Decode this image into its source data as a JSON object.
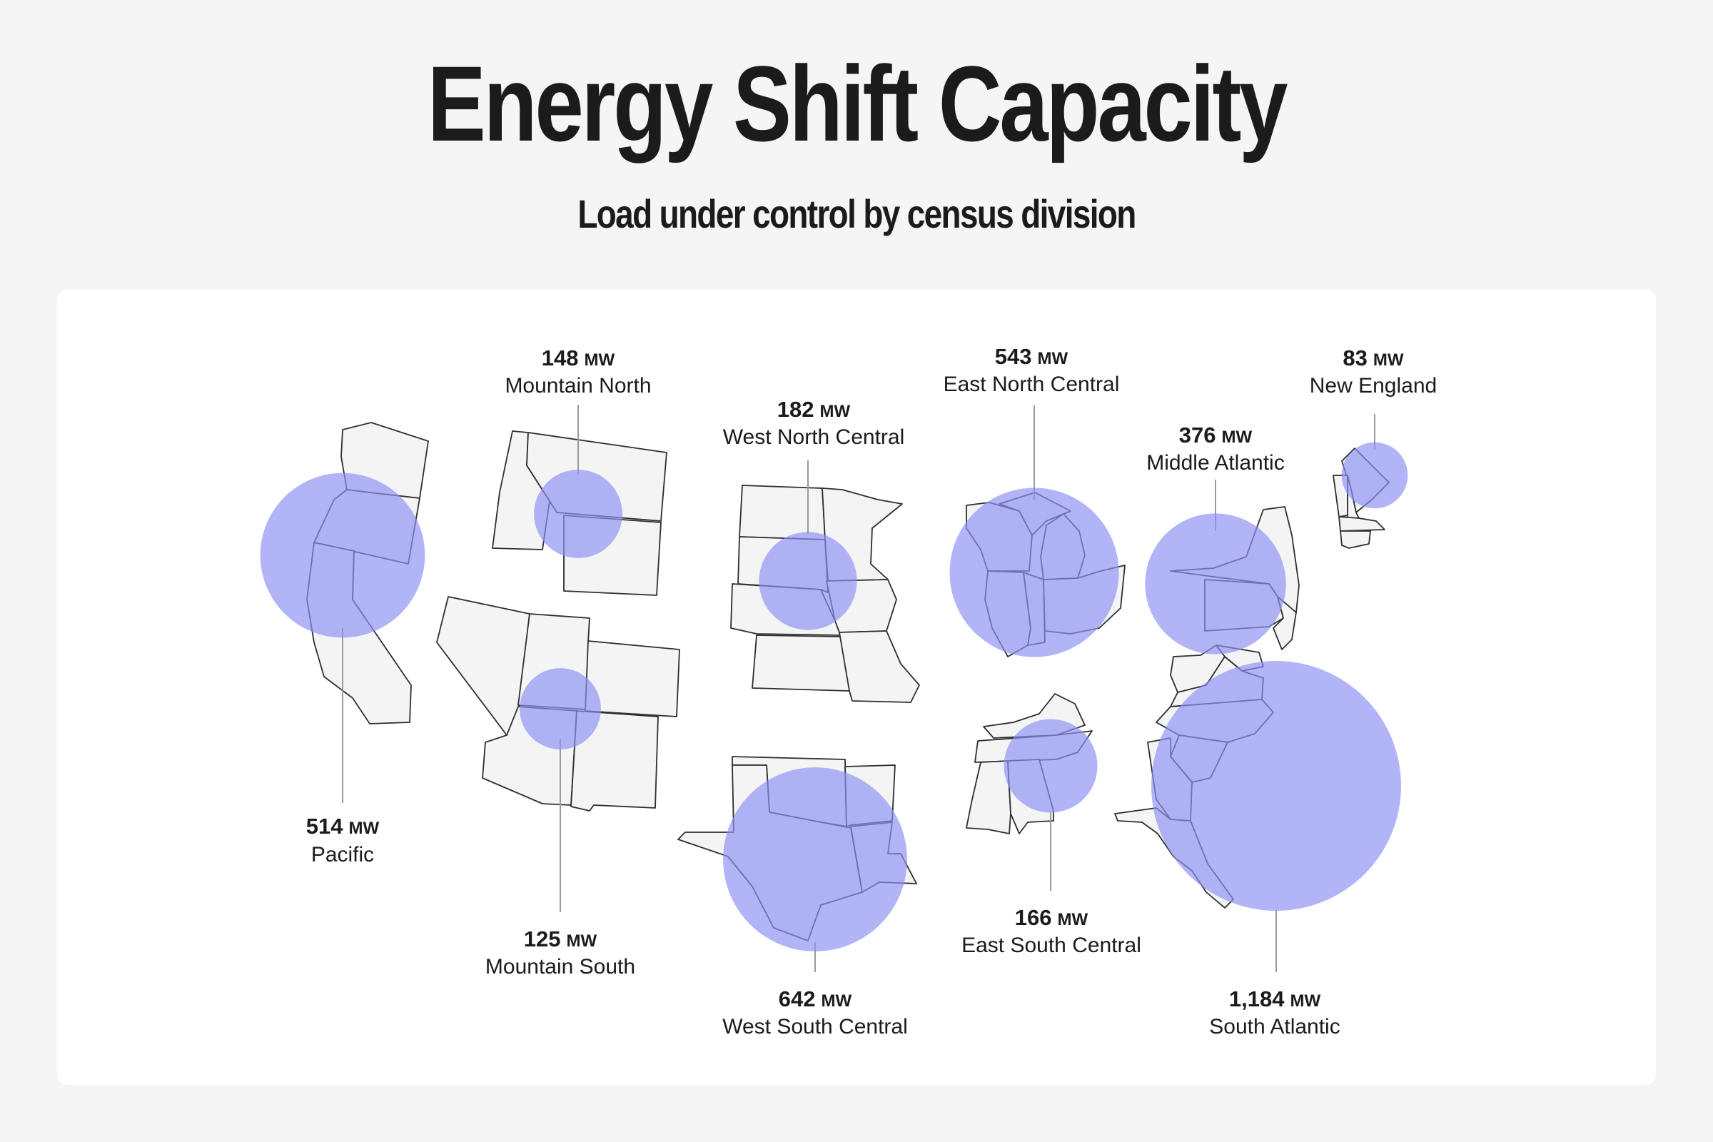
{
  "title": "Energy Shift Capacity",
  "subtitle": "Load under control by census division",
  "bubble_color": "#8c91f2",
  "divisions": [
    {
      "id": "pacific",
      "name": "Pacific",
      "value": "514",
      "unit": "MW",
      "mw": 514
    },
    {
      "id": "mountain-north",
      "name": "Mountain North",
      "value": "148",
      "unit": "MW",
      "mw": 148
    },
    {
      "id": "mountain-south",
      "name": "Mountain South",
      "value": "125",
      "unit": "MW",
      "mw": 125
    },
    {
      "id": "west-north-central",
      "name": "West North Central",
      "value": "182",
      "unit": "MW",
      "mw": 182
    },
    {
      "id": "west-south-central",
      "name": "West South Central",
      "value": "642",
      "unit": "MW",
      "mw": 642
    },
    {
      "id": "east-north-central",
      "name": "East North Central",
      "value": "543",
      "unit": "MW",
      "mw": 543
    },
    {
      "id": "east-south-central",
      "name": "East South Central",
      "value": "166",
      "unit": "MW",
      "mw": 166
    },
    {
      "id": "middle-atlantic",
      "name": "Middle Atlantic",
      "value": "376",
      "unit": "MW",
      "mw": 376
    },
    {
      "id": "new-england",
      "name": "New England",
      "value": "83",
      "unit": "MW",
      "mw": 83
    },
    {
      "id": "south-atlantic",
      "name": "South Atlantic",
      "value": "1,184",
      "unit": "MW",
      "mw": 1184
    }
  ]
}
